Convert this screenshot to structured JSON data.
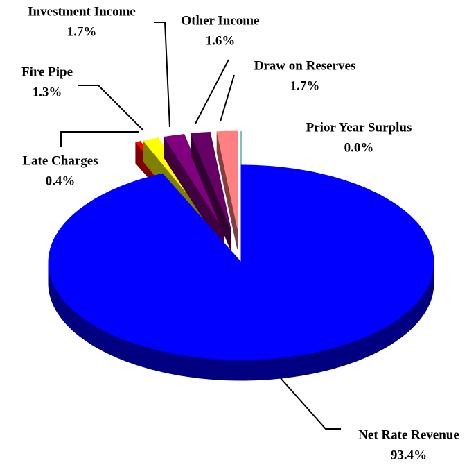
{
  "chart_data": {
    "type": "pie",
    "categories": [
      "Net Rate Revenue",
      "Late Charges",
      "Fire Pipe",
      "Investment Income",
      "Other Income",
      "Draw on Reserves",
      "Prior Year Surplus"
    ],
    "values": [
      93.4,
      0.4,
      1.3,
      1.7,
      1.6,
      1.7,
      0.0
    ],
    "value_labels": [
      "93.4%",
      "0.4%",
      "1.3%",
      "1.7%",
      "1.6%",
      "1.7%",
      "0.0%"
    ],
    "colors": [
      "#0000ff",
      "#ff0000",
      "#ffff00",
      "#800080",
      "#660066",
      "#ff8080",
      "#00ffff"
    ]
  }
}
